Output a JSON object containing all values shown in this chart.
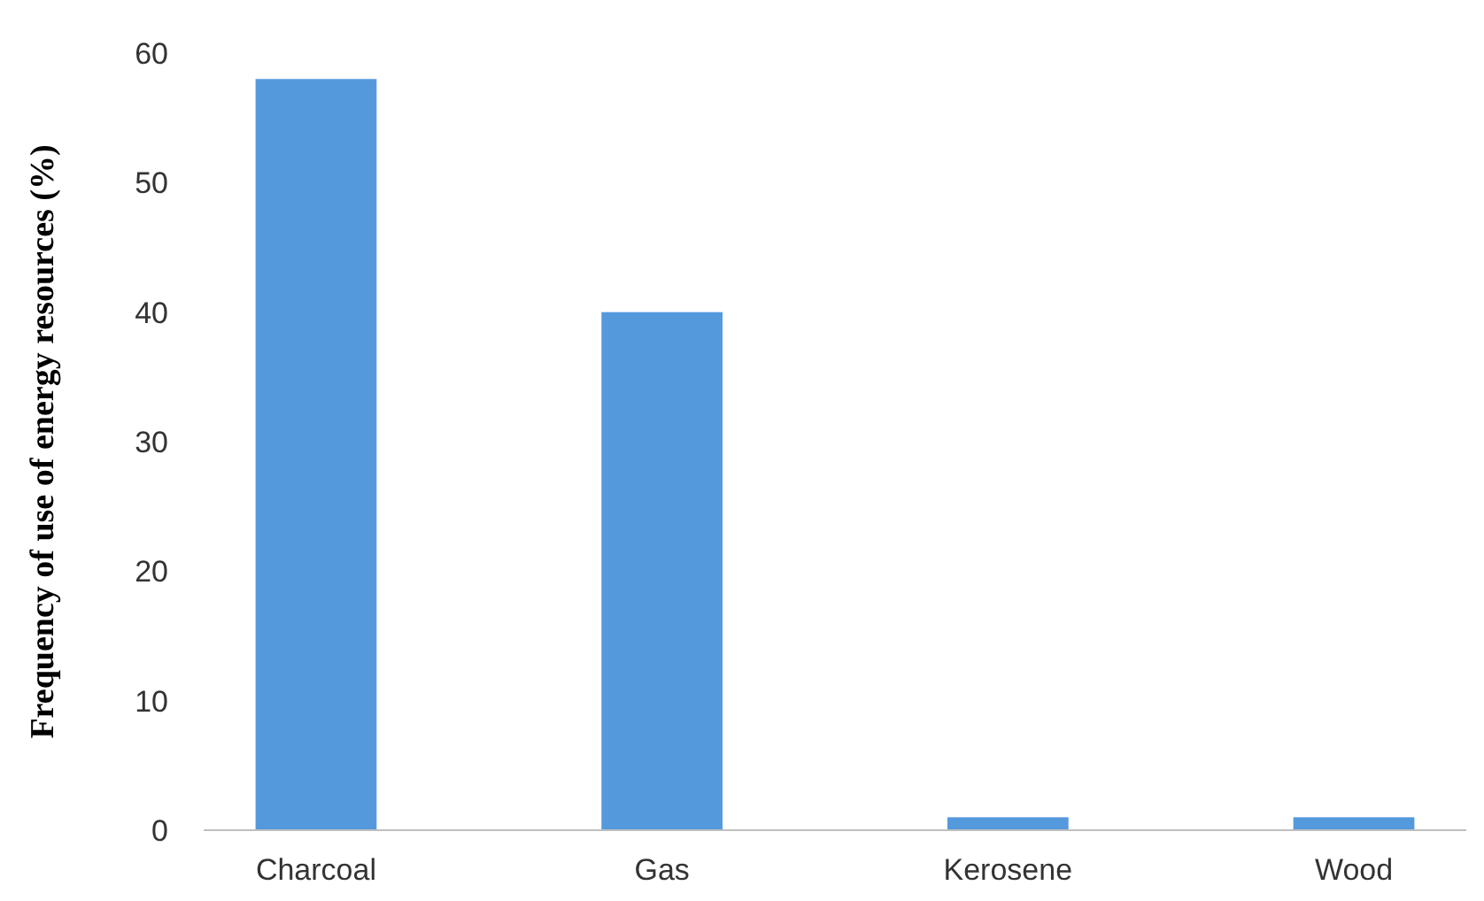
{
  "chart_data": {
    "type": "bar",
    "ylabel": "Frequency of use of energy resources (%)",
    "categories": [
      "Charcoal",
      "Gas",
      "Kerosene",
      "Wood"
    ],
    "values": [
      58,
      40,
      1,
      1
    ],
    "color": "#5599dd",
    "ylim": [
      0,
      60
    ],
    "yticks": [
      0,
      10,
      20,
      30,
      40,
      50,
      60
    ],
    "grid": false
  }
}
